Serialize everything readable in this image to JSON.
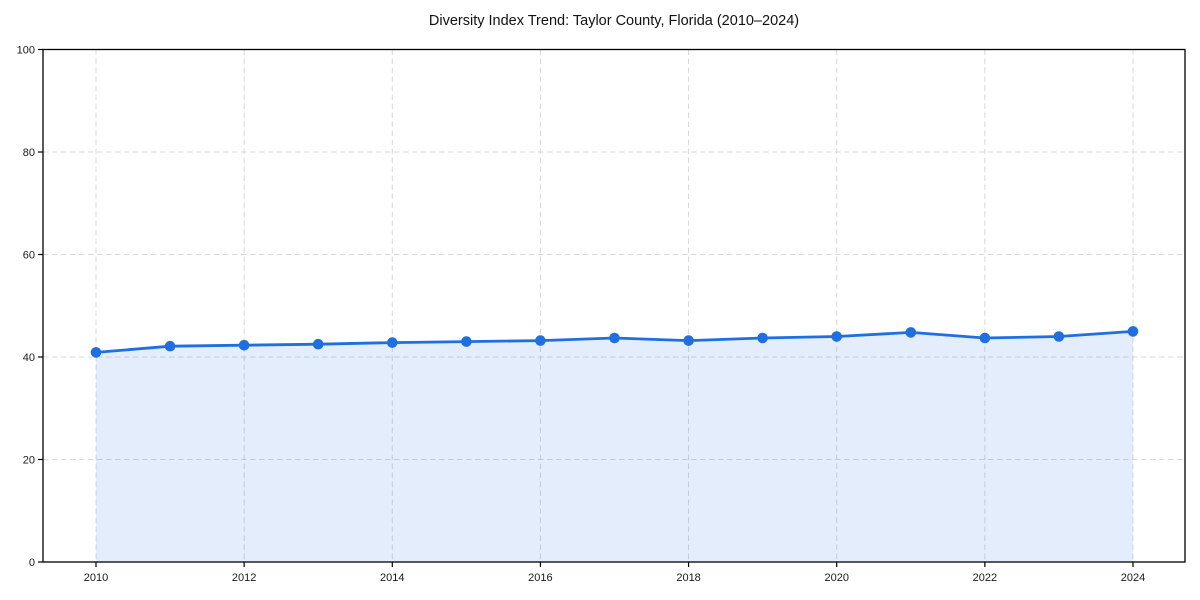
{
  "chart_data": {
    "type": "line",
    "title": "Diversity Index Trend: Taylor County, Florida (2010–2024)",
    "x": [
      2010,
      2011,
      2012,
      2013,
      2014,
      2015,
      2016,
      2017,
      2018,
      2019,
      2020,
      2021,
      2022,
      2023,
      2024
    ],
    "values": [
      40.9,
      42.1,
      42.3,
      42.5,
      42.8,
      43.0,
      43.2,
      43.7,
      43.2,
      43.7,
      44.0,
      44.8,
      43.7,
      44.0,
      45.0
    ],
    "xticks": [
      2010,
      2012,
      2014,
      2016,
      2018,
      2020,
      2022,
      2024
    ],
    "yticks": [
      0,
      20,
      40,
      60,
      80,
      100
    ],
    "ylim": [
      0,
      100
    ],
    "xlabel": "",
    "ylabel": "",
    "grid": true,
    "grid_style": "dashed",
    "legend_position": "none",
    "marker": "circle",
    "colors": {
      "line": "#1f6fe0",
      "marker": "#1f6fe0",
      "fill": "rgba(31, 111, 224, 0.12)",
      "grid": "#d8d8d8",
      "axis": "#000000",
      "title": "#111111",
      "tick_label": "#1a1a1a",
      "background": "#ffffff"
    }
  }
}
